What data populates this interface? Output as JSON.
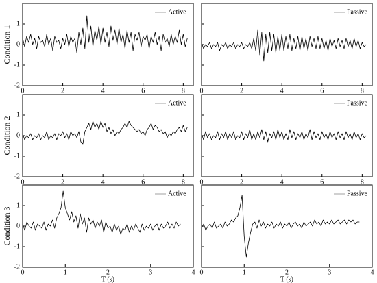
{
  "chart_data": [
    {
      "type": "line",
      "ylabel": "Condition 1",
      "show_ytick_labels": true,
      "x": [
        0,
        0.1,
        0.2,
        0.3,
        0.4,
        0.5,
        0.6,
        0.7,
        0.8,
        0.9,
        1,
        1.1,
        1.2,
        1.3,
        1.4,
        1.5,
        1.6,
        1.7,
        1.8,
        1.9,
        2,
        2.1,
        2.2,
        2.3,
        2.4,
        2.5,
        2.6,
        2.7,
        2.8,
        2.9,
        3,
        3.1,
        3.2,
        3.3,
        3.4,
        3.5,
        3.6,
        3.7,
        3.8,
        3.9,
        4,
        4.1,
        4.2,
        4.3,
        4.4,
        4.5,
        4.6,
        4.7,
        4.8,
        4.9,
        5,
        5.1,
        5.2,
        5.3,
        5.4,
        5.5,
        5.6,
        5.7,
        5.8,
        5.9,
        6,
        6.1,
        6.2,
        6.3,
        6.4,
        6.5,
        6.6,
        6.7,
        6.8,
        6.9,
        7,
        7.1,
        7.2,
        7.3,
        7.4,
        7.5,
        7.6,
        7.7,
        7.8,
        7.9,
        8,
        8.1,
        8.2
      ],
      "series": [
        {
          "name": "Active",
          "color": "#000000",
          "values": [
            0.3,
            -0.1,
            0.4,
            0.1,
            0.5,
            0.0,
            0.3,
            -0.2,
            0.4,
            0.1,
            0.2,
            -0.1,
            0.5,
            0.0,
            0.3,
            -0.3,
            0.4,
            0.1,
            0.2,
            -0.2,
            0.3,
            0.0,
            0.5,
            -0.1,
            0.4,
            0.1,
            0.3,
            -0.4,
            0.6,
            0.0,
            0.8,
            -0.2,
            1.4,
            0.1,
            0.9,
            -0.1,
            0.7,
            0.2,
            0.9,
            0.0,
            0.8,
            0.1,
            0.6,
            -0.1,
            0.9,
            0.2,
            0.7,
            0.0,
            0.8,
            0.1,
            0.5,
            -0.2,
            0.7,
            0.1,
            0.6,
            -0.3,
            0.5,
            0.2,
            0.6,
            -0.1,
            0.4,
            0.2,
            0.5,
            -0.2,
            0.4,
            0.1,
            0.6,
            0.0,
            0.4,
            -0.3,
            0.5,
            0.1,
            0.3,
            -0.1,
            0.5,
            0.0,
            0.4,
            0.1,
            0.7,
            0.0,
            0.5,
            -0.1,
            0.3
          ]
        }
      ],
      "xlim": [
        0,
        8.5
      ],
      "xticks": [
        0,
        2,
        4,
        6,
        8
      ],
      "ylim": [
        -2,
        2
      ],
      "yticks": [
        -2,
        -1,
        0,
        1
      ]
    },
    {
      "type": "line",
      "show_ytick_labels": false,
      "x": [
        0,
        0.1,
        0.2,
        0.3,
        0.4,
        0.5,
        0.6,
        0.7,
        0.8,
        0.9,
        1,
        1.1,
        1.2,
        1.3,
        1.4,
        1.5,
        1.6,
        1.7,
        1.8,
        1.9,
        2,
        2.1,
        2.2,
        2.3,
        2.4,
        2.5,
        2.6,
        2.7,
        2.8,
        2.9,
        3,
        3.1,
        3.2,
        3.3,
        3.4,
        3.5,
        3.6,
        3.7,
        3.8,
        3.9,
        4,
        4.1,
        4.2,
        4.3,
        4.4,
        4.5,
        4.6,
        4.7,
        4.8,
        4.9,
        5,
        5.1,
        5.2,
        5.3,
        5.4,
        5.5,
        5.6,
        5.7,
        5.8,
        5.9,
        6,
        6.1,
        6.2,
        6.3,
        6.4,
        6.5,
        6.6,
        6.7,
        6.8,
        6.9,
        7,
        7.1,
        7.2,
        7.3,
        7.4,
        7.5,
        7.6,
        7.7,
        7.8,
        7.9,
        8,
        8.1,
        8.2
      ],
      "series": [
        {
          "name": "Passive",
          "color": "#000000",
          "values": [
            0.1,
            -0.2,
            0.0,
            -0.1,
            0.1,
            -0.2,
            0.0,
            -0.1,
            0.1,
            -0.3,
            0.0,
            -0.1,
            0.1,
            -0.2,
            0.0,
            -0.1,
            0.1,
            -0.2,
            0.0,
            -0.1,
            0.1,
            -0.2,
            0.0,
            -0.1,
            0.1,
            -0.2,
            0.3,
            -0.3,
            0.7,
            -0.5,
            0.6,
            -0.8,
            0.5,
            -0.4,
            0.6,
            -0.3,
            0.5,
            -0.4,
            0.4,
            -0.3,
            0.5,
            -0.3,
            0.4,
            -0.2,
            0.5,
            -0.3,
            0.3,
            -0.2,
            0.4,
            -0.3,
            0.4,
            -0.2,
            0.3,
            -0.3,
            0.4,
            -0.1,
            0.3,
            -0.2,
            0.4,
            -0.2,
            0.3,
            -0.2,
            0.2,
            -0.3,
            0.3,
            -0.1,
            0.2,
            -0.2,
            0.3,
            -0.1,
            0.2,
            -0.2,
            0.3,
            -0.1,
            0.2,
            -0.2,
            0.3,
            -0.1,
            0.2,
            -0.2,
            0.1,
            -0.1,
            0.0
          ]
        }
      ],
      "xlim": [
        0,
        8.5
      ],
      "xticks": [
        0,
        2,
        4,
        6,
        8
      ],
      "ylim": [
        -2,
        2
      ],
      "yticks": [
        -2,
        -1,
        0,
        1
      ]
    },
    {
      "type": "line",
      "ylabel": "Condition 2",
      "show_ytick_labels": true,
      "x": [
        0,
        0.1,
        0.2,
        0.3,
        0.4,
        0.5,
        0.6,
        0.7,
        0.8,
        0.9,
        1,
        1.1,
        1.2,
        1.3,
        1.4,
        1.5,
        1.6,
        1.7,
        1.8,
        1.9,
        2,
        2.1,
        2.2,
        2.3,
        2.4,
        2.5,
        2.6,
        2.7,
        2.8,
        2.9,
        3,
        3.1,
        3.2,
        3.3,
        3.4,
        3.5,
        3.6,
        3.7,
        3.8,
        3.9,
        4,
        4.1,
        4.2,
        4.3,
        4.4,
        4.5,
        4.6,
        4.7,
        4.8,
        4.9,
        5,
        5.1,
        5.2,
        5.3,
        5.4,
        5.5,
        5.6,
        5.7,
        5.8,
        5.9,
        6,
        6.1,
        6.2,
        6.3,
        6.4,
        6.5,
        6.6,
        6.7,
        6.8,
        6.9,
        7,
        7.1,
        7.2,
        7.3,
        7.4,
        7.5,
        7.6,
        7.7,
        7.8,
        7.9,
        8,
        8.1,
        8.2
      ],
      "series": [
        {
          "name": "Active",
          "color": "#000000",
          "values": [
            0.1,
            -0.2,
            0.0,
            -0.1,
            0.1,
            -0.2,
            0.0,
            -0.1,
            0.1,
            -0.2,
            0.0,
            -0.1,
            0.2,
            -0.2,
            0.0,
            -0.1,
            0.1,
            -0.2,
            0.1,
            0.0,
            0.2,
            -0.1,
            0.1,
            -0.2,
            0.2,
            0.0,
            0.1,
            -0.1,
            0.2,
            -0.3,
            -0.4,
            0.2,
            0.4,
            0.6,
            0.3,
            0.7,
            0.4,
            0.6,
            0.3,
            0.7,
            0.4,
            0.6,
            0.2,
            0.4,
            0.1,
            0.3,
            0.0,
            0.2,
            0.1,
            0.3,
            0.4,
            0.6,
            0.4,
            0.7,
            0.5,
            0.4,
            0.3,
            0.2,
            0.3,
            0.1,
            0.2,
            0.0,
            0.3,
            0.4,
            0.6,
            0.3,
            0.5,
            0.4,
            0.2,
            0.3,
            0.1,
            0.2,
            -0.1,
            0.1,
            0.0,
            0.2,
            0.1,
            0.3,
            0.4,
            0.2,
            0.5,
            0.2,
            0.4
          ]
        }
      ],
      "xlim": [
        0,
        8.5
      ],
      "xticks": [
        0,
        2,
        4,
        6,
        8
      ],
      "ylim": [
        -2,
        2
      ],
      "yticks": [
        -2,
        -1,
        0,
        1
      ]
    },
    {
      "type": "line",
      "show_ytick_labels": false,
      "x": [
        0,
        0.1,
        0.2,
        0.3,
        0.4,
        0.5,
        0.6,
        0.7,
        0.8,
        0.9,
        1,
        1.1,
        1.2,
        1.3,
        1.4,
        1.5,
        1.6,
        1.7,
        1.8,
        1.9,
        2,
        2.1,
        2.2,
        2.3,
        2.4,
        2.5,
        2.6,
        2.7,
        2.8,
        2.9,
        3,
        3.1,
        3.2,
        3.3,
        3.4,
        3.5,
        3.6,
        3.7,
        3.8,
        3.9,
        4,
        4.1,
        4.2,
        4.3,
        4.4,
        4.5,
        4.6,
        4.7,
        4.8,
        4.9,
        5,
        5.1,
        5.2,
        5.3,
        5.4,
        5.5,
        5.6,
        5.7,
        5.8,
        5.9,
        6,
        6.1,
        6.2,
        6.3,
        6.4,
        6.5,
        6.6,
        6.7,
        6.8,
        6.9,
        7,
        7.1,
        7.2,
        7.3,
        7.4,
        7.5,
        7.6,
        7.7,
        7.8,
        7.9,
        8,
        8.1,
        8.2
      ],
      "series": [
        {
          "name": "Passive",
          "color": "#000000",
          "values": [
            0.1,
            -0.2,
            0.2,
            -0.1,
            0.1,
            -0.2,
            0.0,
            -0.1,
            0.2,
            -0.2,
            0.1,
            -0.1,
            0.2,
            -0.2,
            0.1,
            -0.1,
            0.2,
            -0.2,
            0.0,
            -0.1,
            0.2,
            -0.2,
            0.1,
            -0.1,
            0.3,
            -0.2,
            0.1,
            -0.2,
            0.2,
            -0.1,
            0.3,
            -0.2,
            0.2,
            -0.3,
            0.1,
            -0.1,
            0.2,
            -0.2,
            0.3,
            -0.1,
            0.2,
            -0.2,
            0.1,
            -0.2,
            0.3,
            -0.1,
            0.2,
            -0.2,
            0.1,
            -0.1,
            0.2,
            -0.2,
            0.1,
            -0.1,
            0.3,
            -0.2,
            0.2,
            -0.1,
            0.1,
            -0.2,
            0.2,
            -0.1,
            0.1,
            -0.2,
            0.2,
            -0.1,
            0.1,
            -0.2,
            0.2,
            -0.1,
            0.1,
            -0.2,
            0.2,
            -0.1,
            0.1,
            -0.2,
            0.2,
            -0.1,
            0.1,
            -0.2,
            0.1,
            -0.1,
            0.0
          ]
        }
      ],
      "xlim": [
        0,
        8.5
      ],
      "xticks": [
        0,
        2,
        4,
        6,
        8
      ],
      "ylim": [
        -2,
        2
      ],
      "yticks": [
        -2,
        -1,
        0,
        1
      ]
    },
    {
      "type": "line",
      "ylabel": "Condition 3",
      "xlabel": "T (s)",
      "show_ytick_labels": true,
      "x": [
        0,
        0.05,
        0.1,
        0.15,
        0.2,
        0.25,
        0.3,
        0.35,
        0.4,
        0.45,
        0.5,
        0.55,
        0.6,
        0.65,
        0.7,
        0.75,
        0.8,
        0.85,
        0.9,
        0.95,
        1,
        1.05,
        1.1,
        1.15,
        1.2,
        1.25,
        1.3,
        1.35,
        1.4,
        1.45,
        1.5,
        1.55,
        1.6,
        1.65,
        1.7,
        1.75,
        1.8,
        1.85,
        1.9,
        1.95,
        2,
        2.05,
        2.1,
        2.15,
        2.2,
        2.25,
        2.3,
        2.35,
        2.4,
        2.45,
        2.5,
        2.55,
        2.6,
        2.65,
        2.7,
        2.75,
        2.8,
        2.85,
        2.9,
        2.95,
        3,
        3.05,
        3.1,
        3.15,
        3.2,
        3.25,
        3.3,
        3.35,
        3.4,
        3.45,
        3.5,
        3.55,
        3.6,
        3.65,
        3.7
      ],
      "series": [
        {
          "name": "Active",
          "color": "#000000",
          "values": [
            0.1,
            -0.2,
            0.2,
            0.0,
            -0.1,
            0.2,
            -0.2,
            0.1,
            0.0,
            -0.1,
            0.2,
            -0.2,
            0.1,
            0.0,
            0.3,
            -0.1,
            0.4,
            0.6,
            0.9,
            1.7,
            0.9,
            0.6,
            0.3,
            0.7,
            0.2,
            0.5,
            -0.1,
            0.6,
            0.1,
            0.4,
            -0.3,
            0.4,
            0.1,
            0.3,
            -0.1,
            0.2,
            0.0,
            0.3,
            -0.3,
            0.2,
            -0.1,
            0.0,
            -0.3,
            0.1,
            -0.2,
            0.0,
            -0.4,
            -0.1,
            -0.2,
            0.1,
            -0.3,
            0.0,
            -0.2,
            0.1,
            -0.1,
            -0.3,
            0.1,
            -0.2,
            0.0,
            -0.1,
            0.1,
            -0.2,
            0.0,
            0.1,
            -0.2,
            0.1,
            -0.1,
            0.0,
            0.2,
            -0.1,
            0.1,
            -0.1,
            0.2,
            0.0,
            0.1
          ]
        }
      ],
      "xlim": [
        0,
        4
      ],
      "xticks": [
        0,
        1,
        2,
        3,
        4
      ],
      "ylim": [
        -2,
        2
      ],
      "yticks": [
        -2,
        -1,
        0,
        1
      ]
    },
    {
      "type": "line",
      "xlabel": "T (s)",
      "show_ytick_labels": false,
      "x": [
        0,
        0.05,
        0.1,
        0.15,
        0.2,
        0.25,
        0.3,
        0.35,
        0.4,
        0.45,
        0.5,
        0.55,
        0.6,
        0.65,
        0.7,
        0.75,
        0.8,
        0.85,
        0.9,
        0.95,
        1,
        1.05,
        1.1,
        1.15,
        1.2,
        1.25,
        1.3,
        1.35,
        1.4,
        1.45,
        1.5,
        1.55,
        1.6,
        1.65,
        1.7,
        1.75,
        1.8,
        1.85,
        1.9,
        1.95,
        2,
        2.05,
        2.1,
        2.15,
        2.2,
        2.25,
        2.3,
        2.35,
        2.4,
        2.45,
        2.5,
        2.55,
        2.6,
        2.65,
        2.7,
        2.75,
        2.8,
        2.85,
        2.9,
        2.95,
        3,
        3.05,
        3.1,
        3.15,
        3.2,
        3.25,
        3.3,
        3.35,
        3.4,
        3.45,
        3.5,
        3.55,
        3.6,
        3.65,
        3.7
      ],
      "series": [
        {
          "name": "Passive",
          "color": "#000000",
          "values": [
            -0.1,
            0.1,
            -0.2,
            0.0,
            0.1,
            -0.1,
            0.2,
            -0.1,
            0.0,
            0.1,
            -0.1,
            0.2,
            0.0,
            0.1,
            0.3,
            0.2,
            0.4,
            0.5,
            0.9,
            1.5,
            -0.5,
            -1.5,
            -0.8,
            -0.3,
            0.1,
            0.2,
            -0.1,
            0.3,
            0.0,
            0.2,
            -0.1,
            0.1,
            0.0,
            0.2,
            -0.1,
            0.1,
            0.0,
            0.2,
            -0.1,
            0.1,
            0.0,
            0.2,
            -0.1,
            0.1,
            0.2,
            0.0,
            0.1,
            -0.1,
            0.2,
            0.0,
            0.1,
            0.2,
            0.0,
            0.3,
            0.1,
            0.2,
            0.0,
            0.3,
            0.1,
            0.2,
            0.1,
            0.3,
            0.1,
            0.2,
            0.3,
            0.1,
            0.2,
            0.3,
            0.1,
            0.3,
            0.2,
            0.3,
            0.1,
            0.2,
            0.2
          ]
        }
      ],
      "xlim": [
        0,
        4
      ],
      "xticks": [
        0,
        1,
        2,
        3,
        4
      ],
      "ylim": [
        -2,
        2
      ],
      "yticks": [
        -2,
        -1,
        0,
        1
      ]
    }
  ]
}
